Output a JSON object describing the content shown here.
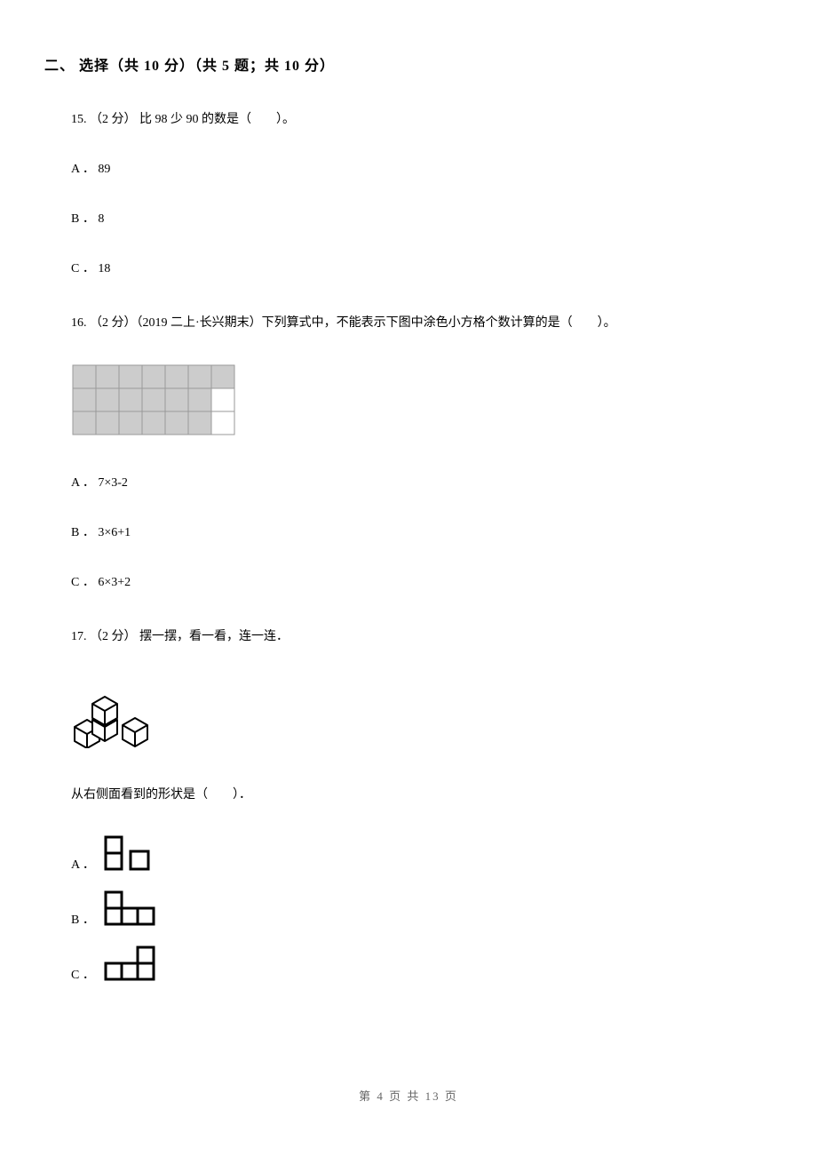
{
  "section": {
    "title": "二、 选择（共 10 分）（共 5 题；共 10 分）"
  },
  "q15": {
    "text": "15. （2 分） 比 98 少 90 的数是（　　）。",
    "a": "A ． 89",
    "b": "B ． 8",
    "c": "C ． 18"
  },
  "q16": {
    "text": "16. （2 分）（2019 二上·长兴期末）下列算式中，不能表示下图中涂色小方格个数计算的是（　　）。",
    "a": "A ． 7×3-2",
    "b": "B ． 3×6+1",
    "c": "C ． 6×3+2",
    "grid": {
      "rows": 3,
      "cols": 7,
      "cell_size": 26,
      "border_color": "#9a9a9a",
      "fill_color": "#cccccc",
      "unfilled": [
        [
          1,
          6
        ],
        [
          2,
          6
        ]
      ]
    }
  },
  "q17": {
    "text": "17. （2 分） 摆一摆，看一看，连一连．",
    "sub": "从右侧面看到的形状是（　　）．",
    "a": "A ．",
    "b": "B ．",
    "c": "C ．"
  },
  "footer": {
    "text": "第 4 页 共 13 页"
  },
  "svg": {
    "stroke": "#000000",
    "fill": "#ffffff",
    "cube_fill": "#ffffff"
  }
}
